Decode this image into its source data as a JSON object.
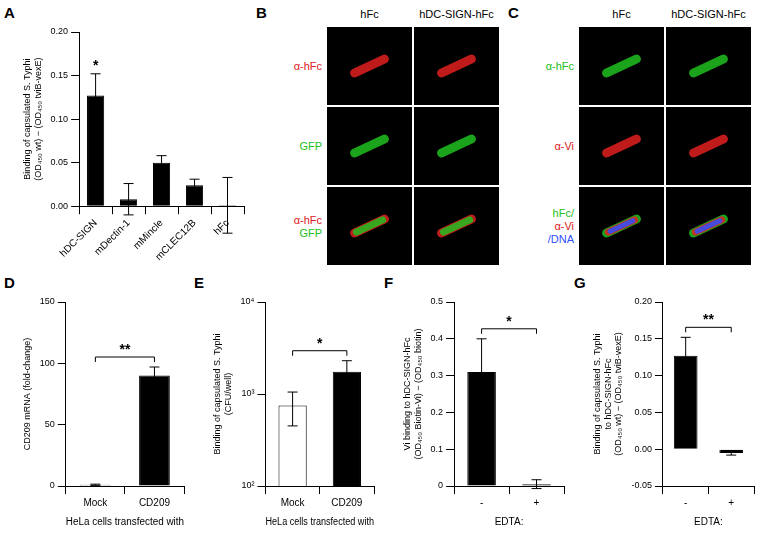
{
  "chart_data": [
    {
      "panel": "A",
      "type": "bar",
      "categories": [
        "hDC-SIGN",
        "mDectin-1",
        "mMincle",
        "mCLEC12B",
        "hFc"
      ],
      "values": [
        0.127,
        0.008,
        0.05,
        0.024,
        0.001
      ],
      "errors": [
        0.025,
        0.018,
        0.008,
        0.007,
        0.032
      ],
      "colors": [
        "#000000",
        "#000000",
        "#000000",
        "#000000",
        "#000000"
      ],
      "y_label": "Binding of capsulated S. Typhi\n(OD₄₅₀ wt) − (OD₄₅₀ tviB-vexE)",
      "ylim": [
        0,
        0.2
      ],
      "yticks": [
        {
          "value": 0,
          "label": "0.00"
        },
        {
          "value": 0.05,
          "label": "0.05"
        },
        {
          "value": 0.1,
          "label": "0.10"
        },
        {
          "value": 0.15,
          "label": "0.15"
        },
        {
          "value": 0.2,
          "label": "0.20"
        }
      ],
      "annotations": [
        {
          "category": "hDC-SIGN",
          "text": "*"
        }
      ],
      "grid": false
    },
    {
      "panel": "D",
      "type": "bar",
      "categories": [
        "Mock",
        "CD209"
      ],
      "values": [
        1,
        90
      ],
      "errors": [
        0.5,
        7
      ],
      "colors": [
        "#ffffff",
        "#000000"
      ],
      "y_label": "CD209 mRNA (fold-change)",
      "x_label": "HeLa cells transfected with",
      "ylim": [
        0,
        150
      ],
      "yticks": [
        0,
        50,
        100,
        150
      ],
      "significance": "**",
      "grid": false
    },
    {
      "panel": "E",
      "type": "bar",
      "log": "y",
      "categories": [
        "Mock",
        "CD209"
      ],
      "values": [
        750,
        1750
      ],
      "errors": [
        300,
        550
      ],
      "colors": [
        "#ffffff",
        "#000000"
      ],
      "y_label": "Binding of capsulated S. Typhi\n(CFU/well)",
      "x_label": "HeLa cells transfected with",
      "ylim": [
        100,
        10000
      ],
      "yticks": [
        {
          "value": 100,
          "label": "10²"
        },
        {
          "value": 1000,
          "label": "10³"
        },
        {
          "value": 10000,
          "label": "10⁴"
        }
      ],
      "significance": "*",
      "grid": false
    },
    {
      "panel": "F",
      "type": "bar",
      "categories": [
        "-",
        "+"
      ],
      "values": [
        0.31,
        0.005
      ],
      "errors": [
        0.09,
        0.012
      ],
      "colors": [
        "#000000",
        "#000000"
      ],
      "y_label": "Vi binding to hDC-SIGN-hFc\n(OD₄₅₀ Biotin-Vi) − (OD₄₅₀ biotin)",
      "x_label": "EDTA:",
      "ylim": [
        0,
        0.5
      ],
      "yticks": [
        0,
        0.1,
        0.2,
        0.3,
        0.4,
        0.5
      ],
      "significance": "*",
      "grid": false
    },
    {
      "panel": "G",
      "type": "bar",
      "categories": [
        "-",
        "+"
      ],
      "values": [
        0.127,
        -0.005
      ],
      "errors": [
        0.025,
        0.003
      ],
      "colors": [
        "#000000",
        "#000000"
      ],
      "y_label": "Binding of capsulated S. Typhi\nto hDC-SIGN-hFc\n(OD₄₅₀ wt) − (OD₄₅₀ tviB-vexE)",
      "x_label": "EDTA:",
      "ylim": [
        -0.05,
        0.2
      ],
      "yticks": [
        {
          "value": -0.05,
          "label": "-0.05"
        },
        {
          "value": 0,
          "label": "0.00"
        },
        {
          "value": 0.05,
          "label": "0.05"
        },
        {
          "value": 0.1,
          "label": "0.10"
        },
        {
          "value": 0.15,
          "label": "0.15"
        },
        {
          "value": 0.2,
          "label": "0.20"
        }
      ],
      "significance": "**",
      "grid": false
    }
  ],
  "image_panels": [
    {
      "panel": "B",
      "columns": [
        "hFc",
        "hDC-SIGN-hFc"
      ],
      "rows": [
        [
          {
            "text": "α-hFc",
            "color": "#e02020"
          }
        ],
        [
          {
            "text": "GFP",
            "color": "#20c020"
          }
        ],
        [
          {
            "text": "α-hFc",
            "color": "#e02020"
          },
          {
            "text": "GFP",
            "color": "#20c020"
          }
        ]
      ]
    },
    {
      "panel": "C",
      "columns": [
        "hFc",
        "hDC-SIGN-hFc"
      ],
      "rows": [
        [
          {
            "text": "α-hFc",
            "color": "#20c020"
          }
        ],
        [
          {
            "text": "α-Vi",
            "color": "#e02020"
          }
        ],
        [
          {
            "text": "hFc/",
            "color": "#20c020"
          },
          {
            "text": "α-Vi",
            "color": "#e02020"
          },
          {
            "text": "/DNA",
            "color": "#3050ff"
          }
        ]
      ]
    }
  ]
}
